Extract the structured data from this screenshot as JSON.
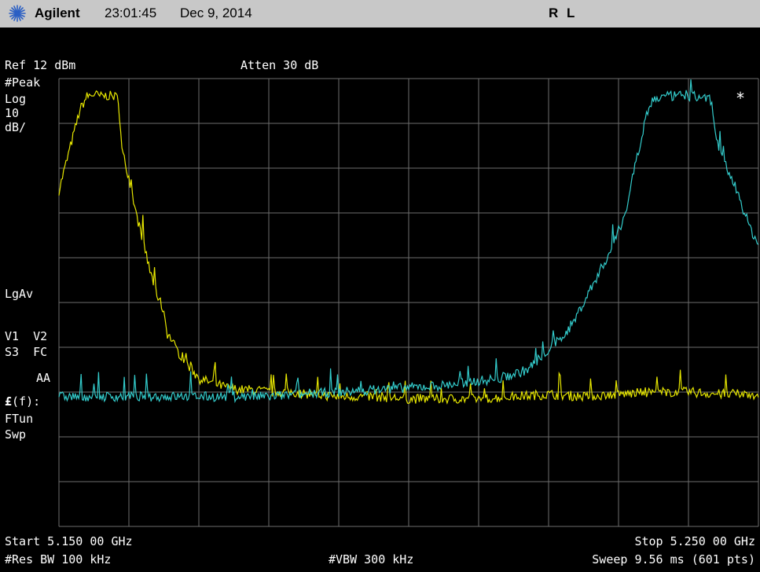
{
  "header": {
    "brand": "Agilent",
    "time": "23:01:45",
    "date": "Dec 9, 2014",
    "status": "R L",
    "logo_icon": "agilent-spark-logo-icon"
  },
  "settings": {
    "ref_level": "Ref 12 dBm",
    "attenuation": "Atten 30 dB",
    "detector": "#Peak",
    "scale_type": "Log",
    "scale_value": "10",
    "scale_unit": "dB/",
    "average": "LgAv",
    "trace_labels": "V1  V2",
    "sweep_labels": "S3  FC",
    "aa_label": "AA",
    "ftun_label_prefix": "£",
    "ftun_label_suffix": "(f):",
    "ftun": "FTun",
    "swp": "Swp",
    "marker_symbol": "*"
  },
  "footer": {
    "start": "Start 5.150 00 GHz",
    "stop": "Stop 5.250 00 GHz",
    "rbw": "#Res BW 100 kHz",
    "vbw": "#VBW 300 kHz",
    "sweep": "Sweep 9.56 ms (601 pts)"
  },
  "chart_data": {
    "type": "line",
    "x_unit": "GHz",
    "y_unit": "dBm",
    "xlim": [
      5.15,
      5.25
    ],
    "ylim": [
      -88,
      12
    ],
    "grid": true,
    "grid_divisions_x": 10,
    "grid_divisions_y": 10,
    "series": [
      {
        "color": "#e6e600",
        "points": [
          [
            5.15,
            -13
          ],
          [
            5.151,
            -7
          ],
          [
            5.152,
            -1
          ],
          [
            5.153,
            5
          ],
          [
            5.154,
            8
          ],
          [
            5.155,
            8.5
          ],
          [
            5.156,
            8
          ],
          [
            5.157,
            8.2
          ],
          [
            5.158,
            8
          ],
          [
            5.1585,
            7.5
          ],
          [
            5.159,
            -4
          ],
          [
            5.16,
            -10
          ],
          [
            5.161,
            -18
          ],
          [
            5.162,
            -24
          ],
          [
            5.163,
            -31
          ],
          [
            5.164,
            -36
          ],
          [
            5.165,
            -40
          ],
          [
            5.1655,
            -45
          ],
          [
            5.166,
            -46
          ],
          [
            5.167,
            -49
          ],
          [
            5.168,
            -51
          ],
          [
            5.169,
            -53
          ],
          [
            5.17,
            -55
          ],
          [
            5.171,
            -55.5
          ],
          [
            5.172,
            -56
          ],
          [
            5.174,
            -57
          ],
          [
            5.176,
            -57.5
          ],
          [
            5.178,
            -57.5
          ],
          [
            5.18,
            -58
          ],
          [
            5.183,
            -58
          ],
          [
            5.186,
            -58.5
          ],
          [
            5.19,
            -59
          ],
          [
            5.195,
            -59
          ],
          [
            5.2,
            -59.5
          ],
          [
            5.205,
            -59.5
          ],
          [
            5.21,
            -59.5
          ],
          [
            5.215,
            -59
          ],
          [
            5.22,
            -58.5
          ],
          [
            5.225,
            -59
          ],
          [
            5.23,
            -58.5
          ],
          [
            5.235,
            -58
          ],
          [
            5.24,
            -58
          ],
          [
            5.245,
            -58.5
          ],
          [
            5.25,
            -58.5
          ]
        ]
      },
      {
        "color": "#33cccc",
        "points": [
          [
            5.15,
            -59
          ],
          [
            5.155,
            -59
          ],
          [
            5.16,
            -59
          ],
          [
            5.165,
            -59
          ],
          [
            5.17,
            -59
          ],
          [
            5.175,
            -59
          ],
          [
            5.18,
            -59
          ],
          [
            5.185,
            -58.5
          ],
          [
            5.19,
            -58
          ],
          [
            5.195,
            -57.5
          ],
          [
            5.2,
            -57
          ],
          [
            5.205,
            -56.5
          ],
          [
            5.21,
            -55.5
          ],
          [
            5.213,
            -55
          ],
          [
            5.215,
            -54
          ],
          [
            5.217,
            -53
          ],
          [
            5.219,
            -50
          ],
          [
            5.221,
            -47
          ],
          [
            5.223,
            -44
          ],
          [
            5.225,
            -38
          ],
          [
            5.227,
            -32
          ],
          [
            5.229,
            -26
          ],
          [
            5.231,
            -18
          ],
          [
            5.232,
            -10
          ],
          [
            5.233,
            -3
          ],
          [
            5.234,
            4
          ],
          [
            5.235,
            7.5
          ],
          [
            5.237,
            8
          ],
          [
            5.239,
            8.2
          ],
          [
            5.241,
            8
          ],
          [
            5.243,
            7.5
          ],
          [
            5.2435,
            5
          ],
          [
            5.244,
            -2
          ],
          [
            5.245,
            -6
          ],
          [
            5.246,
            -10
          ],
          [
            5.247,
            -13
          ],
          [
            5.248,
            -18
          ],
          [
            5.249,
            -22
          ],
          [
            5.25,
            -25
          ]
        ]
      }
    ]
  }
}
